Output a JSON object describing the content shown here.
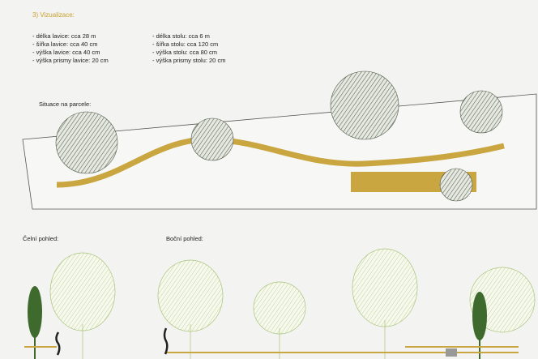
{
  "heading": "3) Vizualizace:",
  "bench": [
    "- délka lavice: cca 28 m",
    "- šířka lavice: cca 40 cm",
    "- výška lavice: cca 40 cm",
    "- výška prismy lavice: 20 cm"
  ],
  "table": [
    "- délka stolu: cca 6 m",
    "- šířka stolu: cca 120 cm",
    "- výška stolu: cca 80 cm",
    "- výška prismy stolu: 20 cm"
  ],
  "labels": {
    "situation": "Situace na parcele:",
    "front": "Čelní pohled:",
    "side": "Boční pohled:"
  }
}
